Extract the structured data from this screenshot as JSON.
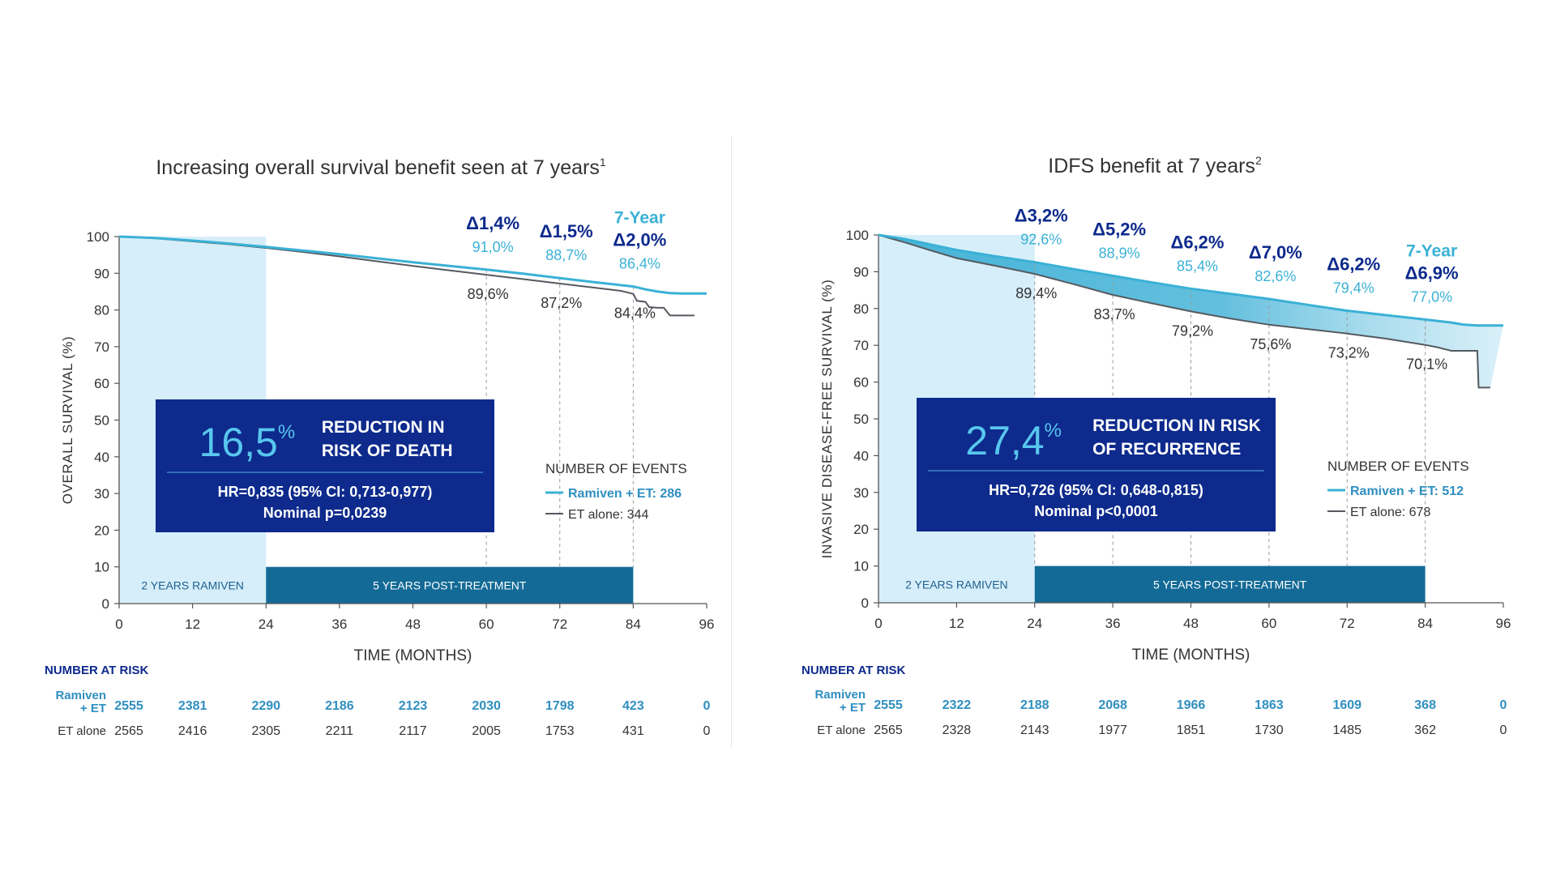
{
  "colors": {
    "ramiven": "#3ab1d6",
    "et": "#555a60",
    "navy": "#0d2a8c",
    "band_light": "#d6eef9",
    "band_dark": "#136a96",
    "area": "#48b4d8",
    "axis": "#555555",
    "text": "#333333"
  },
  "chart_data": [
    {
      "type": "line",
      "title": "Increasing overall survival benefit seen at 7 years",
      "title_sup": "1",
      "xlabel": "TIME (MONTHS)",
      "ylabel": "OVERALL SURVIVAL (%)",
      "xlim": [
        0,
        96
      ],
      "ylim": [
        0,
        100
      ],
      "x_ticks": [
        "0",
        "12",
        "24",
        "36",
        "48",
        "60",
        "72",
        "84",
        "96"
      ],
      "y_ticks": [
        "0",
        "10",
        "20",
        "30",
        "40",
        "50",
        "60",
        "70",
        "80",
        "90",
        "100"
      ],
      "series": [
        {
          "name": "Ramiven + ET",
          "x": [
            0,
            6,
            12,
            18,
            24,
            30,
            36,
            42,
            48,
            54,
            60,
            66,
            72,
            78,
            84,
            86,
            88,
            90,
            92,
            96
          ],
          "values": [
            100,
            99.6,
            98.9,
            98.1,
            97.2,
            96.2,
            95.2,
            94.1,
            93.0,
            92.0,
            91.0,
            89.9,
            88.7,
            87.5,
            86.4,
            85.6,
            85.0,
            84.6,
            84.5,
            84.5
          ]
        },
        {
          "name": "ET alone",
          "x": [
            0,
            6,
            12,
            18,
            24,
            30,
            36,
            42,
            48,
            54,
            60,
            66,
            72,
            78,
            82,
            84,
            84.6,
            86,
            86.6,
            88,
            89,
            90,
            91,
            94
          ],
          "values": [
            100,
            99.5,
            98.7,
            97.9,
            96.9,
            95.8,
            94.6,
            93.3,
            92.0,
            90.8,
            89.6,
            88.4,
            87.2,
            86.0,
            85.2,
            84.4,
            82.5,
            82.2,
            80.8,
            80.6,
            80.6,
            78.5,
            78.5,
            78.5
          ]
        }
      ],
      "delta_labels": [
        {
          "x": 60,
          "delta": "Δ1,4%",
          "ramiven": "91,0%",
          "et": "89,6%"
        },
        {
          "x": 72,
          "delta": "Δ1,5%",
          "ramiven": "88,7%",
          "et": "87,2%"
        },
        {
          "x": 84,
          "prefix": "7-Year",
          "delta": "Δ2,0%",
          "ramiven": "86,4%",
          "et": "84,4%"
        }
      ],
      "band_labels": {
        "treatment": "2 YEARS RAMIVEN",
        "post": "5 YEARS POST-TREATMENT"
      },
      "reduction_box": {
        "value": "16,5",
        "unit": "%",
        "line1": "REDUCTION IN",
        "line2": "RISK OF DEATH",
        "hr": "HR=0,835 (95% CI: 0,713-0,977)",
        "p": "Nominal p=0,0239"
      },
      "legend": {
        "title": "NUMBER OF EVENTS",
        "ramiven": "Ramiven + ET: 286",
        "et": "ET alone: 344"
      },
      "risk_table": {
        "title": "NUMBER AT RISK",
        "rows": [
          {
            "label1": "Ramiven",
            "label2": "+ ET",
            "values": [
              "2555",
              "2381",
              "2290",
              "2186",
              "2123",
              "2030",
              "1798",
              "423",
              "0"
            ]
          },
          {
            "label1": "ET alone",
            "label2": "",
            "values": [
              "2565",
              "2416",
              "2305",
              "2211",
              "2117",
              "2005",
              "1753",
              "431",
              "0"
            ]
          }
        ]
      }
    },
    {
      "type": "area",
      "title": "IDFS benefit at 7 years",
      "title_sup": "2",
      "xlabel": "TIME (MONTHS)",
      "ylabel": "INVASIVE DISEASE-FREE SURVIVAL (%)",
      "xlim": [
        0,
        96
      ],
      "ylim": [
        0,
        100
      ],
      "x_ticks": [
        "0",
        "12",
        "24",
        "36",
        "48",
        "60",
        "72",
        "84",
        "96"
      ],
      "y_ticks": [
        "0",
        "10",
        "20",
        "30",
        "40",
        "50",
        "60",
        "70",
        "80",
        "90",
        "100"
      ],
      "series": [
        {
          "name": "Ramiven + ET",
          "x": [
            0,
            4,
            8,
            12,
            18,
            24,
            30,
            36,
            42,
            48,
            54,
            60,
            66,
            72,
            78,
            84,
            88,
            90,
            92,
            96
          ],
          "values": [
            100,
            98.9,
            97.4,
            95.9,
            94.2,
            92.6,
            90.7,
            88.9,
            87.1,
            85.4,
            84.0,
            82.6,
            81.0,
            79.4,
            78.2,
            77.0,
            76.2,
            75.6,
            75.4,
            75.4
          ]
        },
        {
          "name": "ET alone",
          "x": [
            0,
            4,
            8,
            12,
            18,
            24,
            30,
            36,
            42,
            48,
            54,
            60,
            66,
            72,
            78,
            84,
            86,
            88,
            90,
            92,
            92.2,
            94
          ],
          "values": [
            100,
            98.0,
            95.8,
            93.7,
            91.6,
            89.4,
            86.6,
            83.7,
            81.4,
            79.2,
            77.3,
            75.6,
            74.4,
            73.2,
            71.8,
            70.1,
            69.4,
            68.5,
            68.5,
            68.5,
            58.5,
            58.5
          ]
        }
      ],
      "delta_labels": [
        {
          "x": 24,
          "delta": "Δ3,2%",
          "ramiven": "92,6%",
          "et": "89,4%"
        },
        {
          "x": 36,
          "delta": "Δ5,2%",
          "ramiven": "88,9%",
          "et": "83,7%"
        },
        {
          "x": 48,
          "delta": "Δ6,2%",
          "ramiven": "85,4%",
          "et": "79,2%"
        },
        {
          "x": 60,
          "delta": "Δ7,0%",
          "ramiven": "82,6%",
          "et": "75,6%"
        },
        {
          "x": 72,
          "delta": "Δ6,2%",
          "ramiven": "79,4%",
          "et": "73,2%"
        },
        {
          "x": 84,
          "prefix": "7-Year",
          "delta": "Δ6,9%",
          "ramiven": "77,0%",
          "et": "70,1%"
        }
      ],
      "band_labels": {
        "treatment": "2 YEARS RAMIVEN",
        "post": "5 YEARS POST-TREATMENT"
      },
      "reduction_box": {
        "value": "27,4",
        "unit": "%",
        "line1": "REDUCTION IN RISK",
        "line2": "OF RECURRENCE",
        "hr": "HR=0,726 (95% CI: 0,648-0,815)",
        "p": "Nominal p<0,0001"
      },
      "legend": {
        "title": "NUMBER OF EVENTS",
        "ramiven": "Ramiven + ET: 512",
        "et": "ET alone: 678"
      },
      "risk_table": {
        "title": "NUMBER AT RISK",
        "rows": [
          {
            "label1": "Ramiven",
            "label2": "+ ET",
            "values": [
              "2555",
              "2322",
              "2188",
              "2068",
              "1966",
              "1863",
              "1609",
              "368",
              "0"
            ]
          },
          {
            "label1": "ET alone",
            "label2": "",
            "values": [
              "2565",
              "2328",
              "2143",
              "1977",
              "1851",
              "1730",
              "1485",
              "362",
              "0"
            ]
          }
        ]
      }
    }
  ]
}
